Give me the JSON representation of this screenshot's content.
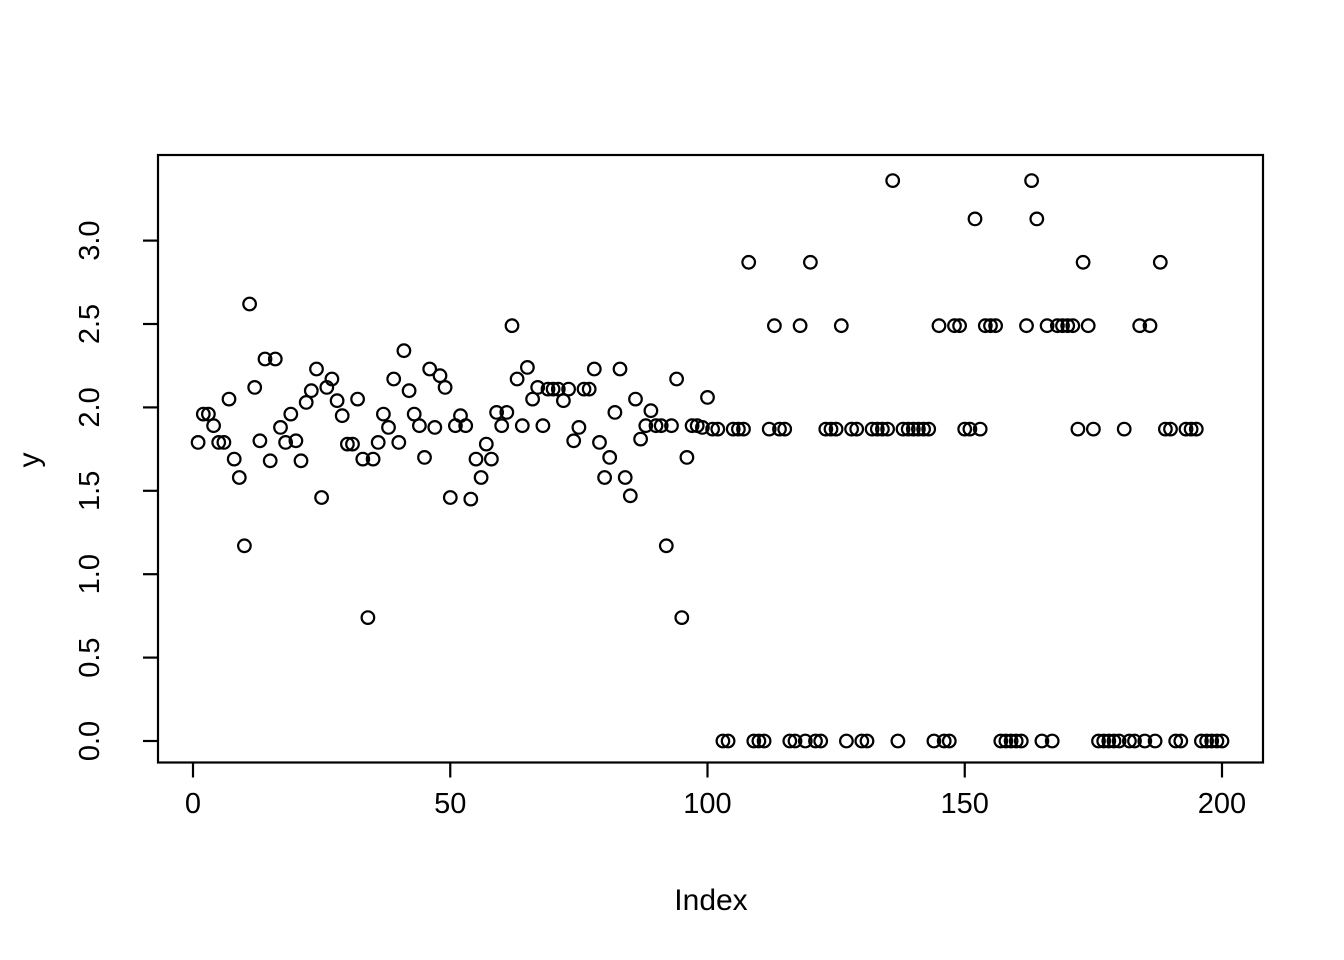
{
  "chart_data": {
    "type": "scatter",
    "title": "",
    "xlabel": "Index",
    "ylabel": "y",
    "legend": "none",
    "grid": false,
    "marker": {
      "shape": "open-circle",
      "stroke_color": "#000000",
      "fill": "none"
    },
    "x_tick_labels": [
      "0",
      "50",
      "100",
      "150",
      "200"
    ],
    "x_tick_values": [
      0,
      50,
      100,
      150,
      200
    ],
    "y_tick_labels": [
      "0.0",
      "0.5",
      "1.0",
      "1.5",
      "2.0",
      "2.5",
      "3.0"
    ],
    "y_tick_values": [
      0.0,
      0.5,
      1.0,
      1.5,
      2.0,
      2.5,
      3.0
    ],
    "xlim": [
      -6.8,
      208
    ],
    "ylim": [
      -0.13,
      3.51
    ],
    "x": [
      1,
      2,
      3,
      4,
      5,
      6,
      7,
      8,
      9,
      10,
      11,
      12,
      13,
      14,
      15,
      16,
      17,
      18,
      19,
      20,
      21,
      22,
      23,
      24,
      25,
      26,
      27,
      28,
      29,
      30,
      31,
      32,
      33,
      34,
      35,
      36,
      37,
      38,
      39,
      40,
      41,
      42,
      43,
      44,
      45,
      46,
      47,
      48,
      49,
      50,
      51,
      52,
      53,
      54,
      55,
      56,
      57,
      58,
      59,
      60,
      61,
      62,
      63,
      64,
      65,
      66,
      67,
      68,
      69,
      70,
      71,
      72,
      73,
      74,
      75,
      76,
      77,
      78,
      79,
      80,
      81,
      82,
      83,
      84,
      85,
      86,
      87,
      88,
      89,
      90,
      91,
      92,
      93,
      94,
      95,
      96,
      97,
      98,
      99,
      100,
      101,
      102,
      103,
      104,
      105,
      106,
      107,
      108,
      109,
      110,
      111,
      112,
      113,
      114,
      115,
      116,
      117,
      118,
      119,
      120,
      121,
      122,
      123,
      124,
      125,
      126,
      127,
      128,
      129,
      130,
      131,
      132,
      133,
      134,
      135,
      136,
      137,
      138,
      139,
      140,
      141,
      142,
      143,
      144,
      145,
      146,
      147,
      148,
      149,
      150,
      151,
      152,
      153,
      154,
      155,
      156,
      157,
      158,
      159,
      160,
      161,
      162,
      163,
      164,
      165,
      166,
      167,
      168,
      169,
      170,
      171,
      172,
      173,
      174,
      175,
      176,
      177,
      178,
      179,
      180,
      181,
      182,
      183,
      184,
      185,
      186,
      187,
      188,
      189,
      190,
      191,
      192,
      193,
      194,
      195,
      196,
      197,
      198,
      199,
      200
    ],
    "y": [
      1.79,
      1.96,
      1.96,
      1.89,
      1.79,
      1.79,
      2.05,
      1.69,
      1.58,
      1.17,
      2.62,
      2.12,
      1.8,
      2.29,
      1.68,
      2.29,
      1.88,
      1.79,
      1.96,
      1.8,
      1.68,
      2.03,
      2.1,
      2.23,
      1.46,
      2.12,
      2.17,
      2.04,
      1.95,
      1.78,
      1.78,
      2.05,
      1.69,
      0.74,
      1.69,
      1.79,
      1.96,
      1.88,
      2.17,
      1.79,
      2.34,
      2.1,
      1.96,
      1.89,
      1.7,
      2.23,
      1.88,
      2.19,
      2.12,
      1.46,
      1.89,
      1.95,
      1.89,
      1.45,
      1.69,
      1.58,
      1.78,
      1.69,
      1.97,
      1.89,
      1.97,
      2.49,
      2.17,
      1.89,
      2.24,
      2.05,
      2.12,
      1.89,
      2.11,
      2.11,
      2.11,
      2.04,
      2.11,
      1.8,
      1.88,
      2.11,
      2.11,
      2.23,
      1.79,
      1.58,
      1.7,
      1.97,
      2.23,
      1.58,
      1.47,
      2.05,
      1.81,
      1.89,
      1.98,
      1.89,
      1.89,
      1.17,
      1.89,
      2.17,
      0.74,
      1.7,
      1.89,
      1.89,
      1.88,
      2.06,
      1.87,
      1.87,
      0,
      0,
      1.87,
      1.87,
      1.87,
      2.87,
      0,
      0,
      0,
      1.87,
      2.49,
      1.87,
      1.87,
      0,
      0,
      2.49,
      0,
      2.87,
      0,
      0,
      1.87,
      1.87,
      1.87,
      2.49,
      0,
      1.87,
      1.87,
      0,
      0,
      1.87,
      1.87,
      1.87,
      1.87,
      3.36,
      0,
      1.87,
      1.87,
      1.87,
      1.87,
      1.87,
      1.87,
      0,
      2.49,
      0,
      0,
      2.49,
      2.49,
      1.87,
      1.87,
      3.13,
      1.87,
      2.49,
      2.49,
      2.49,
      0,
      0,
      0,
      0,
      0,
      2.49,
      3.36,
      3.13,
      0,
      2.49,
      0,
      2.49,
      2.49,
      2.49,
      2.49,
      1.87,
      2.87,
      2.49,
      1.87,
      0,
      0,
      0,
      0,
      0,
      1.87,
      0,
      0,
      2.49,
      0,
      2.49,
      0,
      2.87,
      1.87,
      1.87,
      0,
      0,
      1.87,
      1.87,
      1.87,
      0,
      0,
      0,
      0,
      0
    ]
  }
}
